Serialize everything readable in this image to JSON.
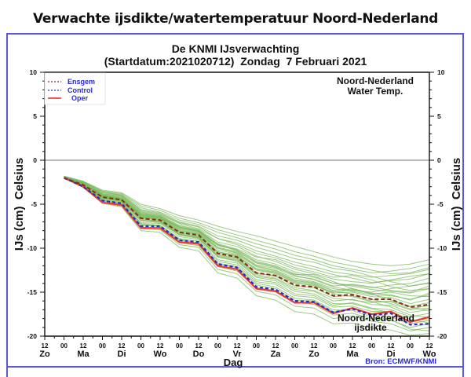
{
  "page_title": "Verwachte ijsdikte/watertemperatuur Noord-Nederland",
  "chart_data": {
    "type": "line",
    "title": "De KNMI IJsverwachting",
    "subtitle": "(Startdatum:2021020712)  Zondag  7 Februari 2021",
    "ylabel_left": "IJs (cm)  Celsius",
    "ylabel_right": "IJs (cm)  Celsius",
    "xlabel": "Dag",
    "ylim": [
      -20,
      10
    ],
    "yticks": [
      10,
      5,
      0,
      -5,
      -10,
      -15,
      -20
    ],
    "ytick_labels": [
      "10",
      "5",
      "0",
      "-5",
      "-10",
      "-15",
      "-20"
    ],
    "x_range_hours": [
      0,
      240
    ],
    "x_ticks_hours": [
      0,
      12,
      24,
      36,
      48,
      60,
      72,
      84,
      96,
      108,
      120,
      132,
      144,
      156,
      168,
      180,
      192,
      204,
      216,
      228,
      240
    ],
    "x_tick_labels": [
      "12",
      "00",
      "12",
      "00",
      "12",
      "00",
      "12",
      "00",
      "12",
      "00",
      "12",
      "00",
      "12",
      "00",
      "12",
      "00",
      "12",
      "00",
      "12",
      "00",
      "12"
    ],
    "day_labels": [
      {
        "hour": 0,
        "label": "Zo"
      },
      {
        "hour": 24,
        "label": "Ma"
      },
      {
        "hour": 48,
        "label": "Di"
      },
      {
        "hour": 72,
        "label": "Wo"
      },
      {
        "hour": 96,
        "label": "Do"
      },
      {
        "hour": 120,
        "label": "Vr"
      },
      {
        "hour": 144,
        "label": "Za"
      },
      {
        "hour": 168,
        "label": "Zo"
      },
      {
        "hour": 192,
        "label": "Ma"
      },
      {
        "hour": 216,
        "label": "Di"
      },
      {
        "hour": 240,
        "label": "Wo"
      }
    ],
    "annotation_top_right": [
      "Noord-Nederland",
      "Water Temp."
    ],
    "annotation_bottom_right": [
      "Noord-Nederland",
      "ijsdikte"
    ],
    "source": "Bron: ECMWF/KNMI",
    "zero_line": 0,
    "legend": {
      "placement": "top-left",
      "entries": [
        {
          "name": "Ensgem",
          "style": "dotted",
          "color": "#a02020"
        },
        {
          "name": "Control",
          "style": "dotted",
          "color": "#2a2ad0"
        },
        {
          "name": "Oper",
          "style": "solid",
          "color": "#ee2020"
        }
      ]
    },
    "x_hours": [
      12,
      24,
      36,
      48,
      60,
      72,
      84,
      96,
      108,
      120,
      132,
      144,
      156,
      168,
      180,
      192,
      204,
      216,
      228,
      240
    ],
    "series": [
      {
        "name": "Oper",
        "color": "#ee3b2b",
        "values": [
          -2.0,
          -3.0,
          -4.8,
          -5.1,
          -7.7,
          -7.7,
          -9.3,
          -9.5,
          -12.0,
          -12.4,
          -14.6,
          -14.9,
          -16.2,
          -16.2,
          -17.4,
          -16.8,
          -17.5,
          -17.2,
          -18.4,
          -17.8
        ]
      },
      {
        "name": "Control",
        "color": "#2a2ad0",
        "values": [
          -2.0,
          -3.0,
          -4.6,
          -4.9,
          -7.5,
          -7.5,
          -9.1,
          -9.3,
          -11.8,
          -12.2,
          -14.4,
          -14.7,
          -16.0,
          -16.1,
          -17.3,
          -16.9,
          -17.6,
          -17.4,
          -18.7,
          -18.6
        ]
      },
      {
        "name": "Ensgem",
        "color": "#8b2a1a",
        "values": [
          -2.0,
          -2.8,
          -4.2,
          -4.5,
          -6.6,
          -6.8,
          -8.2,
          -8.5,
          -10.6,
          -11.0,
          -12.8,
          -13.1,
          -14.2,
          -14.4,
          -15.4,
          -15.3,
          -15.8,
          -15.8,
          -16.7,
          -16.4
        ]
      }
    ],
    "ensemble_color": "#7ab85a",
    "ensemble_members": [
      [
        -1.8,
        -2.4,
        -3.4,
        -3.7,
        -5.0,
        -5.5,
        -6.3,
        -6.8,
        -7.5,
        -8.1,
        -8.6,
        -9.2,
        -9.8,
        -10.4,
        -11.0,
        -11.5,
        -11.8,
        -12.0,
        -11.8,
        -11.3
      ],
      [
        -1.8,
        -2.5,
        -3.6,
        -3.9,
        -5.4,
        -5.9,
        -6.8,
        -7.3,
        -8.2,
        -8.8,
        -9.5,
        -10.1,
        -10.8,
        -11.3,
        -12.0,
        -12.4,
        -12.8,
        -12.6,
        -12.3,
        -11.8
      ],
      [
        -1.9,
        -2.6,
        -3.8,
        -4.1,
        -5.8,
        -6.2,
        -7.2,
        -7.8,
        -8.9,
        -9.4,
        -10.3,
        -10.9,
        -11.6,
        -12.1,
        -12.7,
        -13.0,
        -13.3,
        -13.1,
        -12.9,
        -12.4
      ],
      [
        -1.9,
        -2.6,
        -3.9,
        -4.2,
        -6.0,
        -6.3,
        -7.4,
        -7.9,
        -9.3,
        -9.8,
        -10.9,
        -11.5,
        -12.4,
        -12.9,
        -13.5,
        -13.8,
        -14.0,
        -13.6,
        -13.2,
        -12.9
      ],
      [
        -1.9,
        -2.7,
        -4.0,
        -4.3,
        -6.2,
        -6.5,
        -7.7,
        -8.1,
        -9.7,
        -10.2,
        -11.5,
        -12.0,
        -12.9,
        -13.3,
        -14.0,
        -14.2,
        -14.5,
        -14.2,
        -14.0,
        -13.4
      ],
      [
        -2.0,
        -2.7,
        -4.0,
        -4.4,
        -6.3,
        -6.6,
        -7.8,
        -8.2,
        -10.0,
        -10.5,
        -11.9,
        -12.3,
        -13.2,
        -13.5,
        -14.3,
        -14.1,
        -14.4,
        -14.8,
        -15.0,
        -14.3
      ],
      [
        -2.0,
        -2.8,
        -4.1,
        -4.4,
        -6.4,
        -6.6,
        -8.0,
        -8.3,
        -10.2,
        -10.7,
        -12.1,
        -12.6,
        -13.6,
        -13.9,
        -14.8,
        -14.6,
        -15.1,
        -15.3,
        -15.9,
        -15.1
      ],
      [
        -2.0,
        -2.8,
        -4.2,
        -4.5,
        -6.5,
        -6.7,
        -8.1,
        -8.4,
        -10.4,
        -10.8,
        -12.4,
        -12.8,
        -13.8,
        -14.1,
        -15.1,
        -15.0,
        -15.5,
        -15.6,
        -16.3,
        -15.8
      ],
      [
        -2.0,
        -2.8,
        -4.2,
        -4.6,
        -6.7,
        -6.9,
        -8.3,
        -8.6,
        -10.7,
        -11.1,
        -12.8,
        -13.2,
        -14.3,
        -14.5,
        -15.5,
        -15.4,
        -16.0,
        -16.1,
        -16.9,
        -16.5
      ],
      [
        -2.0,
        -2.9,
        -4.3,
        -4.7,
        -6.9,
        -7.1,
        -8.5,
        -8.8,
        -11.0,
        -11.4,
        -13.2,
        -13.5,
        -14.7,
        -14.9,
        -16.0,
        -15.8,
        -16.4,
        -16.5,
        -17.3,
        -17.0
      ],
      [
        -2.0,
        -2.9,
        -4.4,
        -4.8,
        -7.1,
        -7.2,
        -8.7,
        -9.0,
        -11.3,
        -11.7,
        -13.6,
        -13.9,
        -15.2,
        -15.4,
        -16.5,
        -16.2,
        -16.8,
        -17.0,
        -17.8,
        -17.4
      ],
      [
        -2.0,
        -3.0,
        -4.6,
        -5.0,
        -7.4,
        -7.5,
        -9.1,
        -9.4,
        -11.8,
        -12.2,
        -14.2,
        -14.6,
        -15.9,
        -16.0,
        -17.2,
        -16.9,
        -17.5,
        -17.8,
        -18.6,
        -18.2
      ],
      [
        -2.0,
        -3.1,
        -4.8,
        -5.2,
        -7.8,
        -7.9,
        -9.6,
        -9.9,
        -12.4,
        -12.9,
        -14.9,
        -15.3,
        -16.6,
        -16.8,
        -18.0,
        -17.7,
        -18.3,
        -18.6,
        -19.4,
        -19.0
      ],
      [
        -2.0,
        -3.1,
        -4.9,
        -5.3,
        -8.0,
        -8.2,
        -9.9,
        -10.3,
        -12.8,
        -13.4,
        -15.4,
        -15.9,
        -17.2,
        -17.5,
        -18.6,
        -18.5,
        -19.1,
        -19.3,
        -19.9,
        -19.7
      ],
      [
        -1.9,
        -2.5,
        -3.6,
        -4.0,
        -5.6,
        -6.0,
        -7.0,
        -7.5,
        -8.6,
        -9.1,
        -9.9,
        -10.5,
        -11.2,
        -11.6,
        -12.3,
        -12.6,
        -13.2,
        -13.8,
        -14.3,
        -13.9
      ],
      [
        -1.9,
        -2.6,
        -3.8,
        -4.1,
        -5.9,
        -6.3,
        -7.5,
        -8.0,
        -9.5,
        -10.1,
        -11.0,
        -11.3,
        -12.2,
        -12.7,
        -13.3,
        -13.1,
        -13.6,
        -14.4,
        -14.8,
        -14.6
      ],
      [
        -2.0,
        -2.7,
        -4.0,
        -4.3,
        -6.1,
        -6.4,
        -7.6,
        -8.0,
        -9.6,
        -10.3,
        -11.7,
        -12.2,
        -13.0,
        -13.0,
        -13.8,
        -14.6,
        -15.2,
        -15.0,
        -15.4,
        -15.5
      ],
      [
        -2.0,
        -2.8,
        -4.1,
        -4.5,
        -6.5,
        -6.8,
        -8.2,
        -8.7,
        -10.5,
        -11.0,
        -12.5,
        -12.9,
        -13.9,
        -14.3,
        -15.0,
        -14.7,
        -15.2,
        -15.9,
        -16.6,
        -16.2
      ],
      [
        -2.0,
        -2.8,
        -4.2,
        -4.6,
        -6.6,
        -7.0,
        -8.4,
        -8.7,
        -10.9,
        -11.3,
        -13.0,
        -13.4,
        -14.5,
        -14.8,
        -15.7,
        -15.9,
        -16.2,
        -16.0,
        -16.7,
        -17.1
      ],
      [
        -2.0,
        -2.9,
        -4.3,
        -4.6,
        -6.8,
        -7.0,
        -8.4,
        -8.8,
        -10.8,
        -11.2,
        -12.9,
        -13.1,
        -14.0,
        -14.2,
        -15.2,
        -15.5,
        -16.1,
        -16.7,
        -17.6,
        -17.9
      ],
      [
        -2.0,
        -2.9,
        -4.5,
        -4.9,
        -7.2,
        -7.4,
        -8.9,
        -9.2,
        -11.5,
        -11.9,
        -13.8,
        -14.1,
        -15.4,
        -15.6,
        -16.7,
        -16.6,
        -17.2,
        -17.2,
        -18.1,
        -18.5
      ],
      [
        -2.0,
        -3.0,
        -4.6,
        -5.1,
        -7.6,
        -7.8,
        -9.4,
        -9.7,
        -12.1,
        -12.6,
        -14.5,
        -14.8,
        -16.1,
        -16.4,
        -17.6,
        -17.4,
        -18.0,
        -18.2,
        -19.0,
        -18.6
      ],
      [
        -1.9,
        -2.5,
        -3.7,
        -4.0,
        -5.7,
        -6.1,
        -7.1,
        -7.6,
        -8.9,
        -9.6,
        -10.6,
        -11.1,
        -11.9,
        -12.4,
        -13.0,
        -13.4,
        -13.9,
        -13.7,
        -13.5,
        -12.9
      ],
      [
        -1.9,
        -2.6,
        -3.9,
        -4.3,
        -6.1,
        -6.4,
        -7.6,
        -8.1,
        -9.6,
        -10.2,
        -11.3,
        -11.8,
        -12.7,
        -13.2,
        -14.0,
        -14.3,
        -14.7,
        -14.9,
        -15.1,
        -14.6
      ],
      [
        -2.0,
        -2.7,
        -4.0,
        -4.4,
        -6.3,
        -6.5,
        -7.9,
        -8.3,
        -10.0,
        -10.6,
        -12.0,
        -12.5,
        -13.4,
        -13.8,
        -14.6,
        -14.9,
        -15.3,
        -15.4,
        -15.8,
        -15.3
      ],
      [
        -2.0,
        -2.8,
        -4.1,
        -4.5,
        -6.4,
        -6.7,
        -8.1,
        -8.5,
        -10.4,
        -10.9,
        -12.3,
        -12.7,
        -13.7,
        -14.0,
        -14.9,
        -15.2,
        -15.8,
        -16.3,
        -17.0,
        -16.8
      ],
      [
        -2.0,
        -2.9,
        -4.3,
        -4.7,
        -6.8,
        -7.0,
        -8.5,
        -8.9,
        -11.0,
        -11.5,
        -13.3,
        -13.7,
        -14.9,
        -15.2,
        -16.3,
        -16.3,
        -16.9,
        -17.3,
        -18.3,
        -18.0
      ],
      [
        -2.0,
        -3.0,
        -4.5,
        -4.9,
        -7.3,
        -7.5,
        -9.0,
        -9.4,
        -11.7,
        -12.1,
        -14.0,
        -14.4,
        -15.7,
        -15.9,
        -17.0,
        -17.1,
        -17.8,
        -18.1,
        -19.2,
        -19.4
      ],
      [
        -1.8,
        -2.4,
        -3.5,
        -3.8,
        -5.2,
        -5.7,
        -6.6,
        -7.1,
        -7.9,
        -8.5,
        -9.1,
        -9.7,
        -10.4,
        -10.9,
        -11.6,
        -12.0,
        -12.5,
        -12.9,
        -12.8,
        -12.2
      ],
      [
        -1.9,
        -2.7,
        -4.0,
        -4.3,
        -6.2,
        -6.5,
        -7.7,
        -8.1,
        -9.9,
        -10.4,
        -11.6,
        -12.1,
        -13.1,
        -13.6,
        -14.4,
        -14.8,
        -15.0,
        -14.6,
        -14.3,
        -14.0
      ]
    ]
  }
}
